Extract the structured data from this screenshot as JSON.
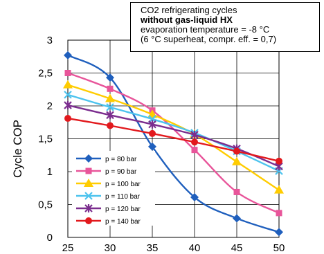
{
  "chart_data": {
    "type": "line",
    "note": {
      "line1": "CO2 refrigerating cycles",
      "line2": "without gas-liquid HX",
      "line3": "evaporation temperature =  -8 °C",
      "line4": "(6 °C superheat, compr. eff. =  0,7)"
    },
    "ylabel": "Cycle COP",
    "xlabel": "",
    "x": [
      25,
      30,
      35,
      40,
      45,
      50
    ],
    "xlim": [
      25,
      50
    ],
    "ylim": [
      0,
      3
    ],
    "xticks": [
      "25",
      "30",
      "35",
      "40",
      "45",
      "50"
    ],
    "yticks": [
      "0",
      "0,5",
      "1",
      "1,5",
      "2",
      "2,5",
      "3"
    ],
    "grid": true,
    "legend_position": "bottom-left",
    "series": [
      {
        "name": "p = 80 bar",
        "color": "#1f5fbd",
        "marker": "diamond",
        "values": [
          2.77,
          2.43,
          1.38,
          0.61,
          0.29,
          0.08
        ]
      },
      {
        "name": "p = 90 bar",
        "color": "#e8559a",
        "marker": "square",
        "values": [
          2.5,
          2.26,
          1.93,
          1.33,
          0.69,
          0.37
        ]
      },
      {
        "name": "p = 100 bar",
        "color": "#ffcc00",
        "marker": "triangle",
        "values": [
          2.32,
          2.11,
          1.87,
          1.57,
          1.15,
          0.72
        ]
      },
      {
        "name": "p = 110 bar",
        "color": "#4cc3ee",
        "marker": "x",
        "values": [
          2.17,
          1.98,
          1.8,
          1.59,
          1.31,
          1.01
        ]
      },
      {
        "name": "p = 120 bar",
        "color": "#7b2d8e",
        "marker": "star",
        "values": [
          2.01,
          1.86,
          1.72,
          1.56,
          1.35,
          1.08
        ]
      },
      {
        "name": "p = 140 bar",
        "color": "#e2191d",
        "marker": "circle",
        "values": [
          1.81,
          1.7,
          1.58,
          1.45,
          1.31,
          1.16
        ]
      }
    ]
  }
}
